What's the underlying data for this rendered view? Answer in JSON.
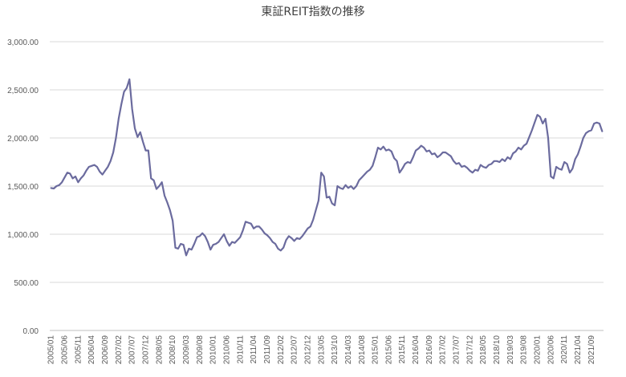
{
  "chart_data": {
    "type": "line",
    "title": "東証REIT指数の推移",
    "xlabel": "",
    "ylabel": "",
    "ylim": [
      0,
      3000
    ],
    "yticks": [
      "0.00",
      "500.00",
      "1,000.00",
      "1,500.00",
      "2,000.00",
      "2,500.00",
      "3,000.00"
    ],
    "ytick_values": [
      0,
      500,
      1000,
      1500,
      2000,
      2500,
      3000
    ],
    "grid": true,
    "legend": "none",
    "line_color": "#6b6b9e",
    "xticks": [
      "2005/01",
      "2005/06",
      "2005/11",
      "2006/04",
      "2006/09",
      "2007/02",
      "2007/07",
      "2007/12",
      "2008/05",
      "2008/10",
      "2009/03",
      "2009/08",
      "2010/01",
      "2010/06",
      "2010/11",
      "2011/04",
      "2011/09",
      "2012/02",
      "2012/07",
      "2012/12",
      "2013/05",
      "2013/10",
      "2014/03",
      "2014/08",
      "2015/01",
      "2015/06",
      "2015/11",
      "2016/04",
      "2016/09",
      "2017/02",
      "2017/07",
      "2017/12",
      "2018/05",
      "2018/10",
      "2019/03",
      "2019/08",
      "2020/01",
      "2020/06",
      "2020/11",
      "2021/04",
      "2021/09"
    ],
    "series": [
      {
        "x_start": "2005/01",
        "x_end": "2021/09",
        "values": [
          1480,
          1475,
          1500,
          1510,
          1540,
          1590,
          1640,
          1630,
          1580,
          1600,
          1540,
          1580,
          1610,
          1660,
          1700,
          1710,
          1720,
          1700,
          1650,
          1620,
          1660,
          1700,
          1760,
          1850,
          2000,
          2200,
          2350,
          2480,
          2520,
          2610,
          2300,
          2100,
          2010,
          2060,
          1960,
          1870,
          1870,
          1580,
          1560,
          1470,
          1500,
          1540,
          1400,
          1330,
          1250,
          1140,
          860,
          850,
          900,
          890,
          780,
          850,
          840,
          900,
          970,
          980,
          1010,
          980,
          920,
          840,
          890,
          900,
          920,
          960,
          1000,
          930,
          880,
          920,
          910,
          940,
          970,
          1040,
          1130,
          1120,
          1110,
          1060,
          1080,
          1080,
          1050,
          1010,
          990,
          960,
          920,
          900,
          850,
          830,
          860,
          940,
          980,
          960,
          930,
          960,
          950,
          980,
          1020,
          1060,
          1080,
          1150,
          1250,
          1350,
          1640,
          1600,
          1380,
          1390,
          1320,
          1300,
          1500,
          1480,
          1470,
          1510,
          1480,
          1500,
          1470,
          1500,
          1560,
          1590,
          1620,
          1650,
          1670,
          1710,
          1800,
          1900,
          1880,
          1910,
          1870,
          1880,
          1860,
          1790,
          1760,
          1640,
          1680,
          1730,
          1750,
          1740,
          1800,
          1870,
          1890,
          1920,
          1900,
          1860,
          1870,
          1830,
          1840,
          1800,
          1820,
          1850,
          1850,
          1830,
          1810,
          1760,
          1730,
          1740,
          1700,
          1710,
          1690,
          1660,
          1640,
          1670,
          1660,
          1720,
          1700,
          1690,
          1720,
          1730,
          1760,
          1760,
          1750,
          1780,
          1760,
          1800,
          1780,
          1840,
          1860,
          1900,
          1880,
          1920,
          1940,
          2010,
          2080,
          2160,
          2240,
          2220,
          2150,
          2200,
          2000,
          1600,
          1580,
          1700,
          1680,
          1670,
          1750,
          1730,
          1640,
          1680,
          1780,
          1830,
          1910,
          2000,
          2050,
          2070,
          2080,
          2150,
          2160,
          2150,
          2070
        ]
      }
    ]
  }
}
